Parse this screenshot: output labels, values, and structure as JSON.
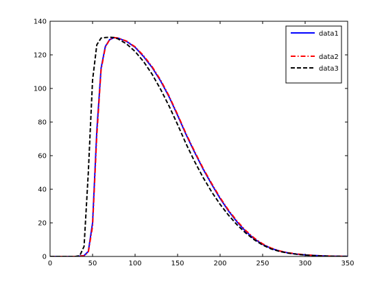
{
  "chart_data": {
    "type": "line",
    "title": "",
    "xlabel": "",
    "ylabel": "",
    "xlim": [
      0,
      350
    ],
    "ylim": [
      0,
      140
    ],
    "xticks": [
      0,
      50,
      100,
      150,
      200,
      250,
      300,
      350
    ],
    "yticks": [
      0,
      20,
      40,
      60,
      80,
      100,
      120,
      140
    ],
    "grid": false,
    "legend_position": "top-right",
    "series": [
      {
        "name": "data1",
        "color": "#0000ff",
        "style": "solid",
        "x": [
          0,
          30,
          40,
          45,
          50,
          55,
          60,
          65,
          70,
          75,
          80,
          90,
          100,
          110,
          120,
          130,
          140,
          150,
          160,
          170,
          180,
          190,
          200,
          210,
          220,
          230,
          240,
          250,
          260,
          270,
          280,
          290,
          300,
          310,
          320,
          330,
          340,
          350
        ],
        "y": [
          0,
          0,
          0.5,
          3,
          20,
          75,
          112,
          125,
          129,
          130.2,
          130,
          128,
          124.5,
          119,
          112.5,
          104.5,
          95,
          84,
          72.5,
          62,
          52,
          43,
          34.5,
          27,
          20.5,
          15,
          10.5,
          7.2,
          4.8,
          3.2,
          2.1,
          1.4,
          0.9,
          0.6,
          0.35,
          0.2,
          0.1,
          0.05
        ]
      },
      {
        "name": "data2",
        "color": "#ff0000",
        "style": "dashdot",
        "x": [
          0,
          30,
          40,
          45,
          50,
          55,
          60,
          65,
          70,
          75,
          80,
          90,
          100,
          110,
          120,
          130,
          140,
          150,
          160,
          170,
          180,
          190,
          200,
          210,
          220,
          230,
          240,
          250,
          260,
          270,
          280,
          290,
          300,
          310,
          320,
          330,
          340,
          350
        ],
        "y": [
          0,
          0,
          0.4,
          2.5,
          18,
          72,
          111,
          124.5,
          129,
          130.3,
          130,
          128.2,
          124.8,
          119.5,
          113,
          105,
          95.5,
          84.5,
          73,
          62.5,
          52.5,
          43.5,
          35,
          27.5,
          21,
          15.5,
          11,
          7.5,
          5,
          3.3,
          2.2,
          1.5,
          1,
          0.6,
          0.35,
          0.2,
          0.1,
          0.05
        ]
      },
      {
        "name": "data3",
        "color": "#000000",
        "style": "dashed",
        "x": [
          0,
          30,
          35,
          40,
          45,
          50,
          55,
          60,
          65,
          70,
          75,
          80,
          90,
          100,
          110,
          120,
          130,
          140,
          150,
          160,
          170,
          180,
          190,
          200,
          210,
          220,
          230,
          240,
          250,
          260,
          270,
          280,
          290,
          300,
          310,
          320,
          330,
          340,
          350
        ],
        "y": [
          0,
          0,
          0.5,
          6,
          50,
          105,
          126,
          130,
          130.3,
          130.5,
          130.3,
          129.5,
          126.5,
          122,
          116,
          108.5,
          99.5,
          89.5,
          78.5,
          67,
          56.5,
          47,
          38.5,
          31,
          24.5,
          18.8,
          14,
          10,
          6.8,
          4.5,
          3,
          2,
          1.3,
          0.8,
          0.5,
          0.3,
          0.15,
          0.08,
          0.04
        ]
      }
    ]
  }
}
